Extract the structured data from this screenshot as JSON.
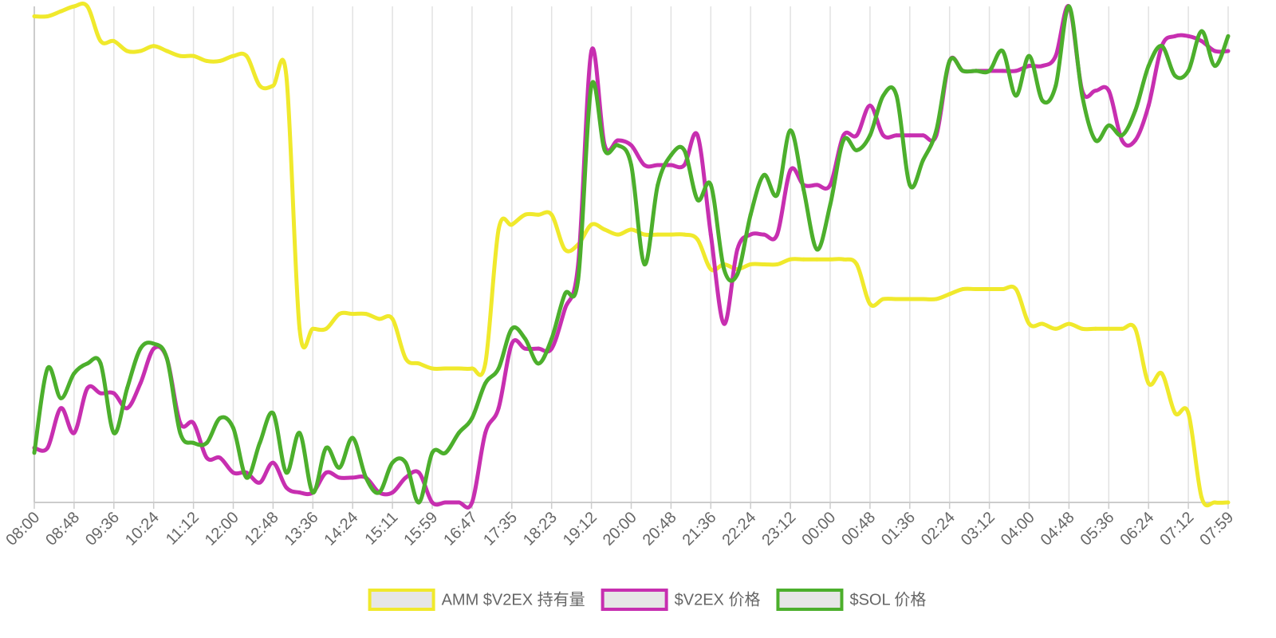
{
  "chart_data": {
    "type": "line",
    "categories": [
      "08:00",
      null,
      null,
      "08:48",
      null,
      null,
      "09:36",
      null,
      null,
      "10:24",
      null,
      null,
      "11:12",
      null,
      null,
      "12:00",
      null,
      null,
      "12:48",
      null,
      null,
      "13:36",
      null,
      null,
      "14:24",
      null,
      null,
      "15:11",
      null,
      null,
      "15:59",
      null,
      null,
      "16:47",
      null,
      null,
      "17:35",
      null,
      null,
      "18:23",
      null,
      null,
      "19:12",
      null,
      null,
      "20:00",
      null,
      null,
      "20:48",
      null,
      null,
      "21:36",
      null,
      null,
      "22:24",
      null,
      null,
      "23:12",
      null,
      null,
      "00:00",
      null,
      null,
      "00:48",
      null,
      null,
      "01:36",
      null,
      null,
      "02:24",
      null,
      null,
      "03:12",
      null,
      null,
      "04:00",
      null,
      null,
      "04:48",
      null,
      null,
      "05:36",
      null,
      null,
      "06:24",
      null,
      null,
      "07:12",
      null,
      null,
      "07:59"
    ],
    "ylim": [
      0,
      100
    ],
    "grid": true,
    "legend": "bottom",
    "series": [
      {
        "name": "AMM $V2EX 持有量",
        "color": "#f0e92c",
        "values": [
          98,
          98,
          99,
          100,
          100,
          93,
          93,
          91,
          91,
          92,
          91,
          90,
          90,
          89,
          89,
          90,
          90,
          84,
          84,
          86,
          35,
          35,
          35,
          38,
          38,
          38,
          37,
          37,
          29,
          28,
          27,
          27,
          27,
          27,
          28,
          55,
          56,
          58,
          58,
          58,
          51,
          52,
          56,
          55,
          54,
          55,
          54,
          54,
          54,
          54,
          53,
          47,
          48,
          47,
          48,
          48,
          48,
          49,
          49,
          49,
          49,
          49,
          48,
          40,
          41,
          41,
          41,
          41,
          41,
          42,
          43,
          43,
          43,
          43,
          43,
          36,
          36,
          35,
          36,
          35,
          35,
          35,
          35,
          35,
          24,
          26,
          18,
          18,
          1,
          0,
          0
        ]
      },
      {
        "name": "$V2EX 价格",
        "color": "#c72fb0",
        "values": [
          11,
          11,
          19,
          14,
          23,
          22,
          22,
          19,
          24,
          31,
          29,
          16,
          16,
          9,
          9,
          6,
          6,
          4,
          8,
          3,
          2,
          2,
          6,
          5,
          5,
          5,
          2,
          2,
          5,
          6,
          0,
          0,
          0,
          0,
          14,
          19,
          32,
          31,
          31,
          31,
          39,
          48,
          91,
          72,
          73,
          72,
          68,
          68,
          68,
          68,
          74,
          54,
          36,
          51,
          54,
          54,
          54,
          67,
          64,
          64,
          64,
          74,
          74,
          80,
          74,
          74,
          74,
          74,
          74,
          89,
          87,
          87,
          87,
          87,
          87,
          88,
          88,
          90,
          100,
          83,
          83,
          83,
          73,
          73,
          80,
          92,
          94,
          94,
          93,
          91,
          91
        ]
      },
      {
        "name": "$SOL 价格",
        "color": "#4caf2c",
        "values": [
          10,
          27,
          21,
          26,
          28,
          28,
          14,
          23,
          31,
          32,
          29,
          14,
          12,
          12,
          17,
          15,
          5,
          12,
          18,
          6,
          14,
          2,
          11,
          7,
          13,
          5,
          2,
          8,
          8,
          0,
          10,
          10,
          14,
          17,
          24,
          27,
          35,
          33,
          28,
          33,
          42,
          45,
          84,
          71,
          72,
          68,
          48,
          64,
          70,
          71,
          61,
          64,
          47,
          46,
          58,
          66,
          62,
          75,
          63,
          51,
          60,
          73,
          71,
          74,
          82,
          82,
          64,
          69,
          75,
          89,
          87,
          87,
          87,
          91,
          82,
          90,
          81,
          84,
          100,
          82,
          73,
          76,
          74,
          79,
          88,
          92,
          86,
          87,
          95,
          88,
          94
        ]
      }
    ]
  }
}
